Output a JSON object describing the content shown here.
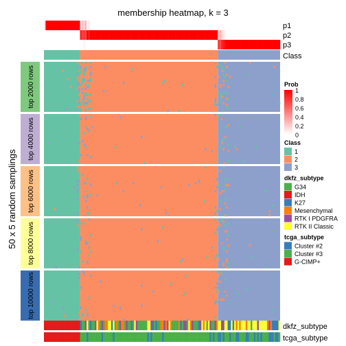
{
  "chart_data": {
    "type": "heatmap",
    "title": "membership heatmap, k = 3",
    "ylabel": "50 x 5 random samplings",
    "n_columns": 144,
    "column_order_note": "",
    "prob_tracks": {
      "labels": [
        "p1",
        "p2",
        "p3"
      ],
      "values": {
        "p1": [
          0.1,
          1,
          1,
          1,
          1,
          1,
          1,
          1,
          1,
          1,
          1,
          1,
          1,
          1,
          1,
          1,
          1,
          1,
          1,
          1,
          1,
          1,
          0.1,
          0.25,
          0.15,
          0.3,
          0,
          0.1,
          0,
          0,
          0,
          0,
          0,
          0,
          0,
          0,
          0,
          0,
          0,
          0,
          0,
          0,
          0,
          0,
          0,
          0,
          0,
          0,
          0,
          0,
          0,
          0,
          0,
          0,
          0,
          0,
          0,
          0,
          0,
          0,
          0,
          0,
          0,
          0,
          0,
          0,
          0,
          0,
          0,
          0,
          0,
          0,
          0,
          0,
          0,
          0,
          0,
          0,
          0,
          0,
          0,
          0,
          0,
          0,
          0,
          0,
          0,
          0,
          0,
          0,
          0,
          0,
          0,
          0,
          0,
          0,
          0,
          0,
          0,
          0,
          0,
          0,
          0,
          0,
          0,
          0,
          0,
          0,
          0,
          0,
          0,
          0,
          0,
          0,
          0,
          0,
          0,
          0,
          0,
          0,
          0,
          0,
          0,
          0,
          0,
          0,
          0,
          0,
          0,
          0,
          0,
          0,
          0,
          0,
          0,
          0,
          0,
          0,
          0,
          0,
          0,
          0,
          0,
          0
        ],
        "p2": [
          0,
          0,
          0,
          0,
          0,
          0,
          0,
          0,
          0,
          0,
          0,
          0,
          0,
          0,
          0,
          0,
          0,
          0,
          0,
          0,
          0,
          0,
          0.9,
          0.75,
          0.8,
          0.7,
          1,
          0.9,
          1,
          1,
          1,
          1,
          1,
          1,
          1,
          1,
          1,
          1,
          1,
          1,
          1,
          1,
          1,
          1,
          1,
          1,
          1,
          1,
          1,
          1,
          1,
          1,
          1,
          1,
          1,
          1,
          1,
          1,
          1,
          1,
          1,
          1,
          1,
          1,
          1,
          1,
          1,
          1,
          1,
          1,
          1,
          1,
          1,
          1,
          1,
          1,
          1,
          1,
          1,
          1,
          1,
          1,
          1,
          1,
          1,
          1,
          1,
          1,
          1,
          1,
          1,
          1,
          1,
          1,
          1,
          1,
          1,
          1,
          1,
          1,
          1,
          1,
          1,
          1,
          1,
          1,
          0.2,
          0.3,
          0.15,
          0.1,
          0.05,
          0,
          0,
          0,
          0,
          0,
          0,
          0,
          0,
          0,
          0,
          0,
          0,
          0,
          0,
          0,
          0,
          0,
          0,
          0,
          0,
          0,
          0,
          0,
          0,
          0,
          0,
          0,
          0,
          0,
          0,
          0,
          0,
          0
        ],
        "p3": [
          0,
          0,
          0,
          0,
          0,
          0,
          0,
          0,
          0,
          0,
          0,
          0,
          0,
          0,
          0,
          0,
          0,
          0,
          0,
          0,
          0,
          0,
          0,
          0,
          0.05,
          0,
          0,
          0,
          0,
          0,
          0,
          0,
          0,
          0,
          0,
          0,
          0,
          0,
          0,
          0,
          0,
          0,
          0,
          0,
          0,
          0,
          0,
          0,
          0,
          0,
          0,
          0,
          0,
          0,
          0,
          0,
          0,
          0,
          0,
          0,
          0,
          0,
          0,
          0,
          0,
          0,
          0,
          0,
          0,
          0,
          0,
          0,
          0,
          0,
          0,
          0,
          0,
          0,
          0,
          0,
          0,
          0,
          0,
          0,
          0,
          0,
          0,
          0,
          0,
          0,
          0,
          0,
          0,
          0,
          0,
          0,
          0,
          0,
          0,
          0,
          0,
          0,
          0,
          0,
          0,
          0,
          0.8,
          0.7,
          0.85,
          0.9,
          0.95,
          1,
          1,
          1,
          1,
          1,
          1,
          1,
          1,
          1,
          1,
          1,
          1,
          1,
          1,
          1,
          1,
          1,
          1,
          1,
          1,
          1,
          1,
          1,
          1,
          1,
          1,
          1,
          1,
          1,
          1,
          1,
          1,
          1
        ]
      }
    },
    "class_track": {
      "label": "Class",
      "segments": [
        {
          "class": "1",
          "count": 22
        },
        {
          "class": "2",
          "count": 84
        },
        {
          "class": "3",
          "count": 38
        }
      ]
    },
    "row_groups": [
      {
        "label": "top 2000 rows",
        "color": "#7fc97f"
      },
      {
        "label": "top 4000 rows",
        "color": "#beaed4"
      },
      {
        "label": "top 6000 rows",
        "color": "#fdc086"
      },
      {
        "label": "top 8000 rows",
        "color": "#ffff99"
      },
      {
        "label": "top 10000 rows",
        "color": "#386cb0"
      }
    ],
    "class_colors": {
      "1": "#66c2a5",
      "2": "#fc8d62",
      "3": "#8da0cb"
    },
    "bottom_tracks": [
      {
        "label": "dkfz_subtype"
      },
      {
        "label": "tcga_subtype"
      }
    ],
    "legend": {
      "prob": {
        "title": "Prob",
        "ticks": [
          "1",
          "0.8",
          "0.6",
          "0.4",
          "0.2",
          "0"
        ],
        "colors": [
          "#ffffff",
          "#ff0000"
        ]
      },
      "class": {
        "title": "Class",
        "items": [
          {
            "label": "1",
            "color": "#66c2a5"
          },
          {
            "label": "2",
            "color": "#fc8d62"
          },
          {
            "label": "3",
            "color": "#8da0cb"
          }
        ]
      },
      "dkfz_subtype": {
        "title": "dkfz_subtype",
        "items": [
          {
            "label": "G34",
            "color": "#4daf4a"
          },
          {
            "label": "IDH",
            "color": "#e41a1c"
          },
          {
            "label": "K27",
            "color": "#377eb8"
          },
          {
            "label": "Mesenchymal",
            "color": "#ff7f00"
          },
          {
            "label": "RTK I PDGFRA",
            "color": "#984ea3"
          },
          {
            "label": "RTK II Classic",
            "color": "#ffff33"
          }
        ]
      },
      "tcga_subtype": {
        "title": "tcga_subtype",
        "items": [
          {
            "label": "Cluster #2",
            "color": "#377eb8"
          },
          {
            "label": "Cluster #3",
            "color": "#4daf4a"
          },
          {
            "label": "G-CIMP+",
            "color": "#e41a1c"
          }
        ]
      }
    }
  }
}
